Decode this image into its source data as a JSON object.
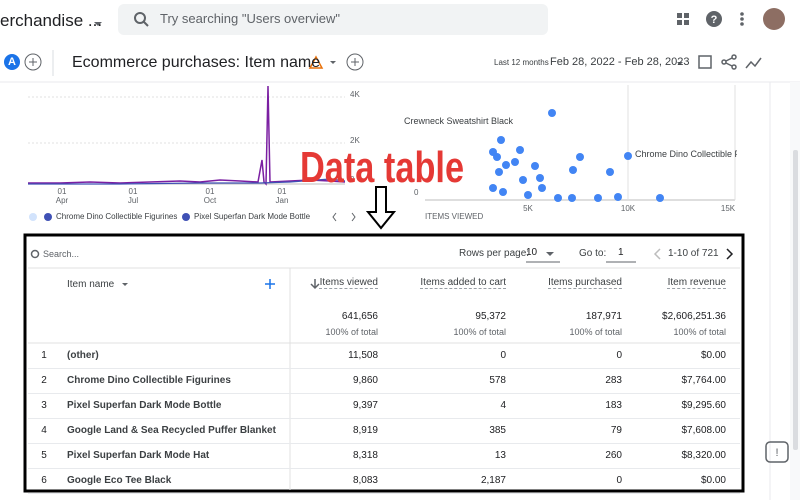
{
  "header": {
    "property": "erchandise ...",
    "search_placeholder": "Try searching \"Users overview\""
  },
  "report": {
    "avatar": "A",
    "title": "Ecommerce purchases: Item name",
    "date_range_label": "Last 12 months",
    "date_range": "Feb 28, 2022 - Feb 28, 2023"
  },
  "line_chart": {
    "y_labels": [
      "4K",
      "2K",
      "0"
    ],
    "x_labels": [
      {
        "day": "01",
        "month": "Apr"
      },
      {
        "day": "01",
        "month": "Jul"
      },
      {
        "day": "01",
        "month": "Oct"
      },
      {
        "day": "01",
        "month": "Jan"
      }
    ],
    "legend": [
      "Chrome Dino Collectible Figurines",
      "Pixel Superfan Dark Mode Bottle"
    ]
  },
  "scatter_chart": {
    "labels": [
      "Crewneck Sweatshirt Black",
      "Chrome Dino Collectible Fi"
    ],
    "y_label": "0",
    "x_labels": [
      "5K",
      "10K",
      "15K"
    ],
    "axis_title": "ITEMS VIEWED"
  },
  "annotation": "Data table",
  "table": {
    "search_placeholder": "Search...",
    "rows_per_page_label": "Rows per page:",
    "rows_per_page": "10",
    "go_to_label": "Go to:",
    "go_to": "1",
    "pagination": "1-10 of 721",
    "columns": [
      "Item name",
      "Items viewed",
      "Items added to cart",
      "Items purchased",
      "Item revenue"
    ],
    "totals": [
      "641,656",
      "95,372",
      "187,971",
      "$2,606,251.36"
    ],
    "totals_note": "100% of total",
    "rows": [
      [
        "1",
        "(other)",
        "11,508",
        "0",
        "0",
        "$0.00"
      ],
      [
        "2",
        "Chrome Dino Collectible Figurines",
        "9,860",
        "578",
        "283",
        "$7,764.00"
      ],
      [
        "3",
        "Pixel Superfan Dark Mode Bottle",
        "9,397",
        "4",
        "183",
        "$9,295.60"
      ],
      [
        "4",
        "Google Land & Sea Recycled Puffer Blanket",
        "8,919",
        "385",
        "79",
        "$7,608.00"
      ],
      [
        "5",
        "Pixel Superfan Dark Mode Hat",
        "8,318",
        "13",
        "260",
        "$8,320.00"
      ],
      [
        "6",
        "Google Eco Tee Black",
        "8,083",
        "2,187",
        "0",
        "$0.00"
      ]
    ]
  }
}
